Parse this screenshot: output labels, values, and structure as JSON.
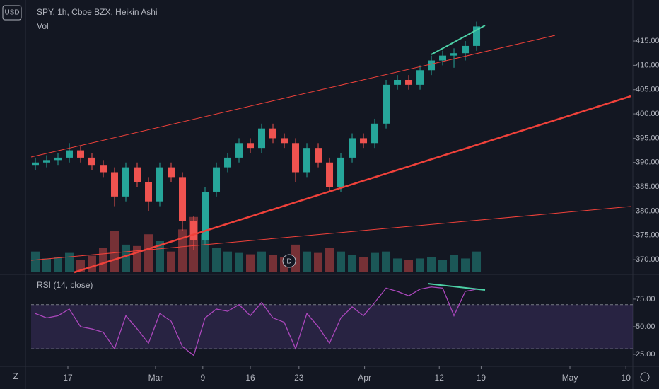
{
  "header": {
    "symbol": "SPY, 1h, Cboe BZX, Heikin Ashi",
    "currency": "USD",
    "timezone_button": "Z"
  },
  "chart_data": [
    {
      "type": "candlestick",
      "volume_label": "Vol",
      "up_color": "#26a69a",
      "down_color": "#ef5350",
      "x": [
        0,
        1,
        2,
        3,
        4,
        5,
        6,
        7,
        8,
        9,
        10,
        11,
        12,
        13,
        14,
        15,
        16,
        17,
        18,
        19,
        20,
        21,
        22,
        23,
        24,
        25,
        26,
        27,
        28,
        29,
        30,
        31,
        32,
        33,
        34,
        35,
        36,
        37,
        38,
        39
      ],
      "open": [
        389.5,
        390,
        390.5,
        391,
        392.5,
        391,
        389.5,
        388,
        383,
        389,
        386,
        382,
        389,
        387,
        378,
        374,
        384,
        389,
        391,
        394,
        393,
        397,
        395,
        394,
        388,
        393,
        390,
        385,
        391,
        395,
        394,
        398,
        406,
        407,
        406,
        409,
        411,
        412,
        412.5,
        414
      ],
      "close": [
        390,
        390.5,
        391,
        392.5,
        391,
        389.5,
        388,
        383,
        389,
        386,
        382,
        389,
        387,
        378,
        374,
        384,
        389,
        391,
        394,
        393,
        397,
        395,
        394,
        388,
        393,
        390,
        385,
        391,
        395,
        394,
        398,
        406,
        407,
        406,
        409,
        411,
        412,
        412.5,
        414,
        418
      ],
      "high": [
        391,
        391.5,
        392,
        394,
        393.5,
        392,
        390.5,
        389,
        390,
        390,
        387,
        390,
        390,
        388,
        379,
        385,
        390,
        392,
        395,
        395,
        398,
        398,
        396,
        395,
        394,
        394,
        391,
        392,
        396,
        396,
        399,
        407,
        408,
        408,
        410,
        412,
        413,
        413.5,
        415,
        419
      ],
      "low": [
        388.5,
        389,
        389.5,
        390,
        390,
        388.5,
        387,
        381,
        382,
        385,
        380,
        381,
        386,
        376,
        372,
        373,
        383,
        388,
        390,
        392,
        392,
        394,
        393,
        386,
        387,
        389,
        384,
        384,
        390,
        393,
        393,
        397,
        405,
        405,
        405,
        408,
        410,
        409.5,
        411,
        413
      ],
      "volume": [
        30,
        20,
        22,
        28,
        18,
        24,
        35,
        60,
        40,
        38,
        55,
        45,
        30,
        62,
        80,
        55,
        35,
        30,
        28,
        26,
        30,
        25,
        22,
        40,
        30,
        28,
        35,
        30,
        25,
        22,
        28,
        30,
        20,
        18,
        20,
        22,
        18,
        25,
        20,
        30
      ],
      "vlim": [
        0,
        180
      ],
      "xlim": [
        -0.375,
        52.81
      ],
      "ylim": [
        367.4,
        423.45
      ],
      "xticks": [
        {
          "value": 2.875,
          "label": "17"
        },
        {
          "value": 10.625,
          "label": "Mar"
        },
        {
          "value": 14.8,
          "label": "9"
        },
        {
          "value": 19,
          "label": "16"
        },
        {
          "value": 23.3,
          "label": "23"
        },
        {
          "value": 29.1,
          "label": "Apr"
        },
        {
          "value": 35.7,
          "label": "12"
        },
        {
          "value": 39.4,
          "label": "19"
        },
        {
          "value": 47.25,
          "label": "May"
        },
        {
          "value": 52.2,
          "label": "10"
        }
      ],
      "yticks": [
        {
          "value": 370,
          "label": "370.00"
        },
        {
          "value": 375,
          "label": "375.00"
        },
        {
          "value": 380,
          "label": "380.00"
        },
        {
          "value": 385,
          "label": "385.00"
        },
        {
          "value": 390,
          "label": "390.00"
        },
        {
          "value": 395,
          "label": "395.00"
        },
        {
          "value": 400,
          "label": "400.00"
        },
        {
          "value": 405,
          "label": "405.00"
        },
        {
          "value": 410,
          "label": "410.00"
        },
        {
          "value": 415,
          "label": "415.00"
        }
      ]
    },
    {
      "type": "line",
      "title": "RSI (14, close)",
      "color": "#ab47bc",
      "x": [
        0,
        1,
        2,
        3,
        4,
        5,
        6,
        7,
        8,
        9,
        10,
        11,
        12,
        13,
        14,
        15,
        16,
        17,
        18,
        19,
        20,
        21,
        22,
        23,
        24,
        25,
        26,
        27,
        28,
        29,
        30,
        31,
        32,
        33,
        34,
        35,
        36,
        37,
        38,
        39
      ],
      "values": [
        62,
        58,
        60,
        66,
        50,
        48,
        45,
        30,
        60,
        48,
        35,
        62,
        55,
        32,
        24,
        58,
        66,
        64,
        70,
        60,
        72,
        58,
        54,
        30,
        62,
        50,
        35,
        58,
        68,
        60,
        72,
        85,
        82,
        78,
        84,
        86,
        85,
        60,
        82,
        84
      ],
      "bands": [
        30,
        70
      ],
      "band_color": "#7e57c2",
      "xlim": [
        -0.375,
        52.81
      ],
      "ylim": [
        16,
        92.9
      ],
      "yticks": [
        {
          "value": 25,
          "label": "25.00"
        },
        {
          "value": 50,
          "label": "50.00"
        },
        {
          "value": 75,
          "label": "75.00"
        }
      ]
    }
  ]
}
